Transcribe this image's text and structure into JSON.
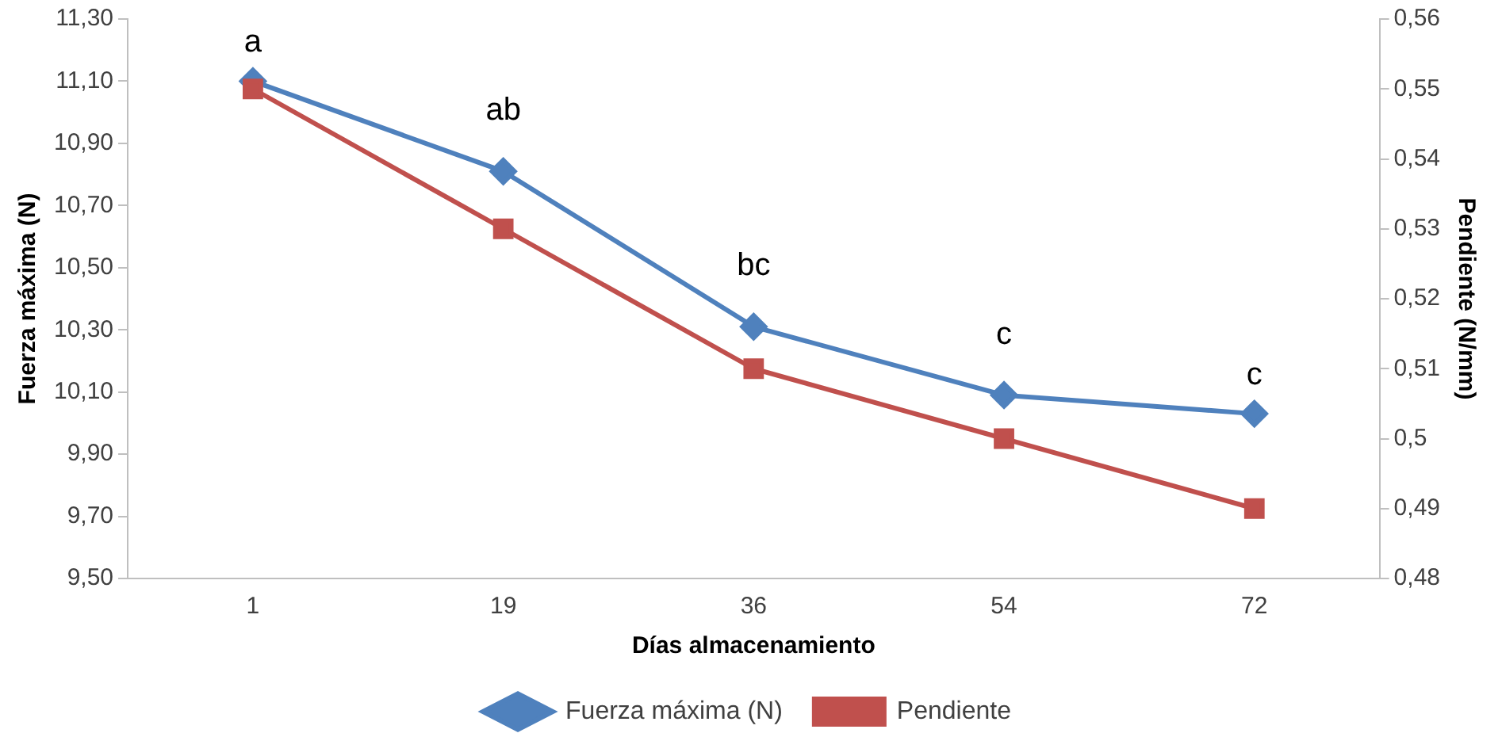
{
  "chart_data": {
    "type": "line",
    "xlabel": "Días almacenamiento",
    "ylabel": "Fuerza máxima (N)",
    "y2label": "Pendiente (N/mm)",
    "categories": [
      "1",
      "19",
      "36",
      "54",
      "72"
    ],
    "series": [
      {
        "name": "Fuerza máxima (N)",
        "color": "#4f81bd",
        "marker": "diamond",
        "values": [
          11.1,
          10.81,
          10.31,
          10.09,
          10.03
        ]
      },
      {
        "name": "Pendiente",
        "color": "#c0504d",
        "marker": "square",
        "axis": "y2",
        "values": [
          0.55,
          0.53,
          0.51,
          0.5,
          0.49
        ]
      }
    ],
    "ylim": [
      9.5,
      11.3
    ],
    "yticks": [
      {
        "value": 9.5,
        "label": "9,50"
      },
      {
        "value": 9.7,
        "label": "9,70"
      },
      {
        "value": 9.9,
        "label": "9,90"
      },
      {
        "value": 10.1,
        "label": "10,10"
      },
      {
        "value": 10.3,
        "label": "10,30"
      },
      {
        "value": 10.5,
        "label": "10,50"
      },
      {
        "value": 10.7,
        "label": "10,70"
      },
      {
        "value": 10.9,
        "label": "10,90"
      },
      {
        "value": 11.1,
        "label": "11,10"
      },
      {
        "value": 11.3,
        "label": "11,30"
      }
    ],
    "y2lim": [
      0.48,
      0.56
    ],
    "y2ticks": [
      {
        "value": 0.48,
        "label": "0,48"
      },
      {
        "value": 0.49,
        "label": "0,49"
      },
      {
        "value": 0.5,
        "label": "0,5"
      },
      {
        "value": 0.51,
        "label": "0,51"
      },
      {
        "value": 0.52,
        "label": "0,52"
      },
      {
        "value": 0.53,
        "label": "0,53"
      },
      {
        "value": 0.54,
        "label": "0,54"
      },
      {
        "value": 0.55,
        "label": "0,55"
      },
      {
        "value": 0.56,
        "label": "0,56"
      }
    ],
    "annotations": [
      {
        "text": "a",
        "x": "1",
        "y": 11.1
      },
      {
        "text": "ab",
        "x": "19",
        "y": 10.81
      },
      {
        "text": "bc",
        "x": "36",
        "y": 10.31
      },
      {
        "text": "c",
        "x": "54",
        "y": 10.09
      },
      {
        "text": "c",
        "x": "72",
        "y": 10.03
      }
    ],
    "legend": "bottom",
    "grid": false,
    "line_style": "solid"
  }
}
